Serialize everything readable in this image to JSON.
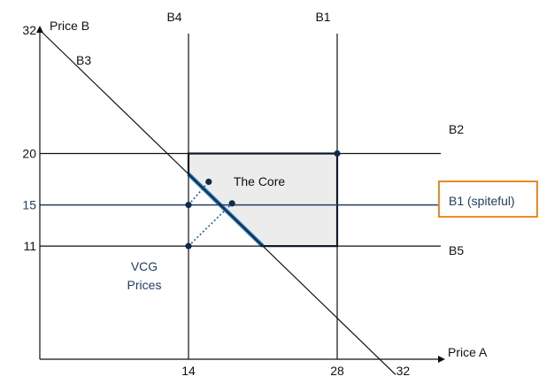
{
  "chart_data": {
    "type": "diagram",
    "axes": {
      "x": {
        "label": "Price A",
        "ticks": [
          14,
          28,
          32
        ],
        "range": [
          0,
          38
        ]
      },
      "y": {
        "label": "Price B",
        "ticks": [
          11,
          15,
          20,
          32
        ],
        "range": [
          0,
          32.5
        ]
      }
    },
    "lines": [
      {
        "name": "B4",
        "type": "vertical",
        "x": 14
      },
      {
        "name": "B1",
        "type": "vertical",
        "x": 28
      },
      {
        "name": "B2",
        "type": "horizontal",
        "y": 20
      },
      {
        "name": "B1 (spiteful)",
        "type": "horizontal",
        "y": 15
      },
      {
        "name": "B5",
        "type": "horizontal",
        "y": 11
      },
      {
        "name": "B3",
        "type": "diagonal",
        "x_plus_y": 32
      }
    ],
    "core_region": {
      "label": "The Core",
      "vertices": [
        [
          14,
          20
        ],
        [
          28,
          20
        ],
        [
          28,
          11
        ],
        [
          21,
          11
        ],
        [
          14,
          18
        ]
      ]
    },
    "vcg": {
      "label": "VCG Prices",
      "points": [
        [
          14,
          15
        ],
        [
          14,
          11
        ]
      ]
    },
    "highlight_points": [
      [
        28,
        20
      ],
      [
        15.9,
        17.25
      ],
      [
        18.1,
        15.15
      ]
    ],
    "colors": {
      "line": "#111111",
      "blue_line": "#1f3f66",
      "core_edge": "#0f2a4a",
      "core_fill": "#ececec",
      "core_lower_edge": "#1f6fb5",
      "callout": "#f0891f",
      "point": "#0f2a4a"
    }
  },
  "labels": {
    "b3": "B3",
    "b4": "B4",
    "b1_top": "B1",
    "b2": "B2",
    "b5": "B5",
    "b1_spiteful": "B1 (spiteful)",
    "core": "The Core",
    "vcg_line1": "VCG",
    "vcg_line2": "Prices",
    "x_axis": "Price A",
    "y_axis": "Price B"
  }
}
